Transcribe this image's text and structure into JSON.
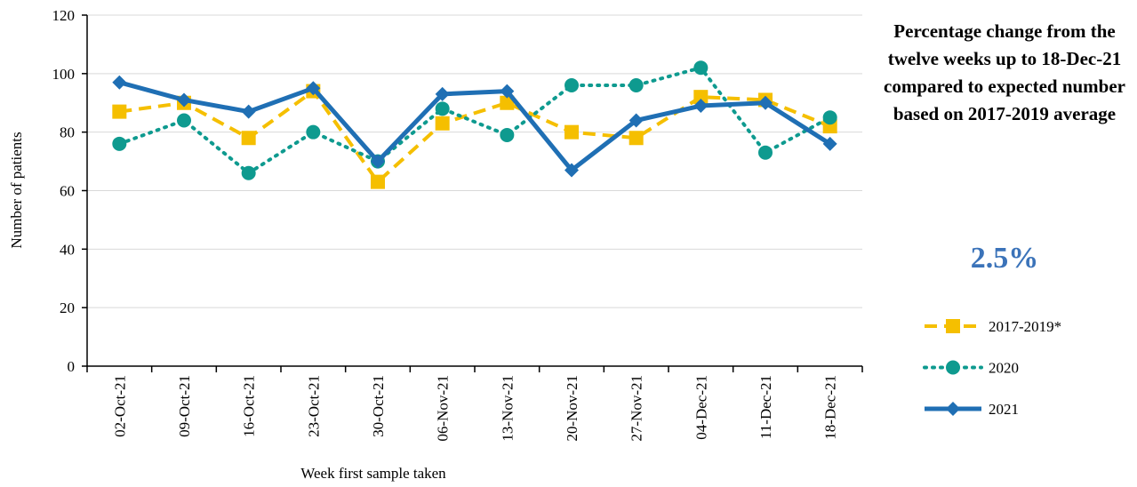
{
  "chart_data": {
    "type": "line",
    "x_label": "Week first sample taken",
    "y_label": "Number of patients",
    "annotation": "Percentage change from the twelve weeks up to 18-Dec-21 compared to expected number based on 2017-2019 average",
    "highlight": "2.5%",
    "categories": [
      "02-Oct-21",
      "09-Oct-21",
      "16-Oct-21",
      "23-Oct-21",
      "30-Oct-21",
      "06-Nov-21",
      "13-Nov-21",
      "20-Nov-21",
      "27-Nov-21",
      "04-Dec-21",
      "11-Dec-21",
      "18-Dec-21"
    ],
    "series": [
      {
        "name": "2017-2019*",
        "color": "#f5bf00",
        "dash": "dashed",
        "marker": "square",
        "values": [
          87,
          90,
          78,
          94,
          63,
          83,
          90,
          80,
          78,
          92,
          91,
          82
        ]
      },
      {
        "name": "2020",
        "color": "#0e9a8f",
        "dash": "dotted",
        "marker": "circle",
        "values": [
          76,
          84,
          66,
          80,
          70,
          88,
          79,
          96,
          96,
          102,
          73,
          85
        ]
      },
      {
        "name": "2021",
        "color": "#1f6fb4",
        "dash": "solid",
        "marker": "diamond",
        "values": [
          97,
          91,
          87,
          95,
          70,
          93,
          94,
          67,
          84,
          89,
          90,
          76
        ]
      }
    ],
    "ylim": [
      0,
      120
    ],
    "yticks": [
      0,
      20,
      40,
      60,
      80,
      100,
      120
    ],
    "grid": true
  }
}
